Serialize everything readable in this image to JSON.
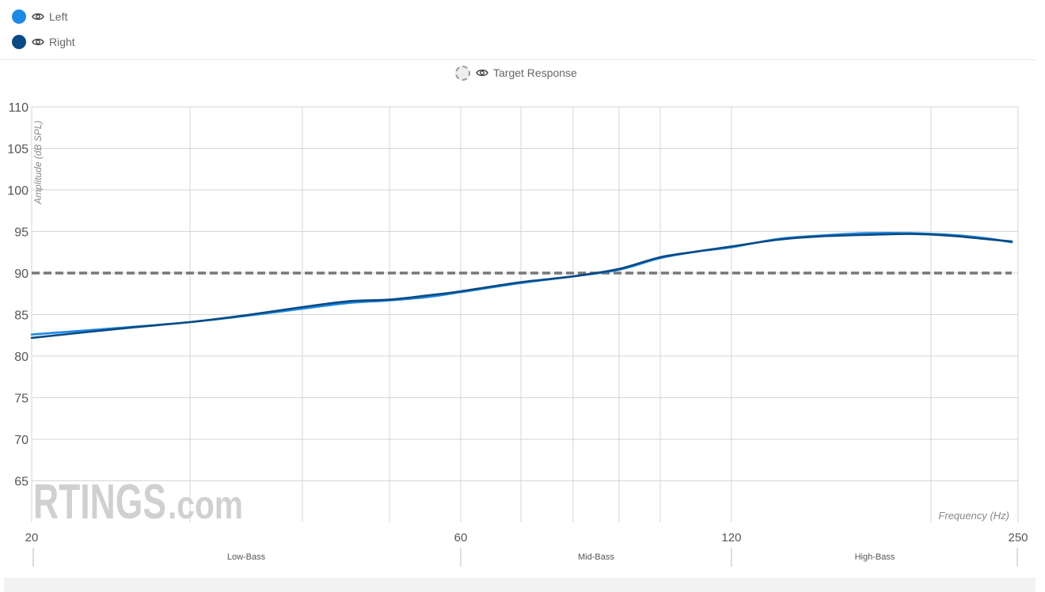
{
  "legend": [
    {
      "label": "Left",
      "color": "#1e88e5",
      "icon": "eye-icon"
    },
    {
      "label": "Right",
      "color": "#0a4a82",
      "icon": "eye-icon"
    }
  ],
  "target_legend": {
    "label": "Target Response",
    "icon": "eye-icon"
  },
  "watermark": {
    "brand": "RTINGS",
    "suffix": ".com"
  },
  "chart_data": {
    "type": "line",
    "x_scale": "log",
    "xlim": [
      20,
      250
    ],
    "ylim": [
      60,
      110
    ],
    "yticks": [
      65,
      70,
      75,
      80,
      85,
      90,
      95,
      100,
      105,
      110
    ],
    "xticks": [
      {
        "value": 20,
        "label": "20"
      },
      {
        "value": 60,
        "label": "60"
      },
      {
        "value": 120,
        "label": "120"
      },
      {
        "value": 250,
        "label": "250"
      }
    ],
    "ylabel": "Amplitude (dB SPL)",
    "xlabel": "Frequency (Hz)",
    "bands": [
      {
        "label": "Low-Bass",
        "from": 20,
        "to": 60
      },
      {
        "label": "Mid-Bass",
        "from": 60,
        "to": 120
      },
      {
        "label": "High-Bass",
        "from": 120,
        "to": 250
      }
    ],
    "grid": true,
    "target": {
      "name": "Target Response",
      "value": 90,
      "color": "#777777"
    },
    "series": [
      {
        "name": "Left",
        "color": "#1e88e5",
        "x": [
          20,
          25,
          30,
          35,
          40,
          45,
          50,
          55,
          60,
          70,
          80,
          90,
          100,
          110,
          120,
          135,
          150,
          170,
          190,
          210,
          230,
          250
        ],
        "y": [
          82.6,
          83.4,
          84.1,
          84.9,
          85.7,
          86.4,
          86.7,
          87.1,
          87.7,
          88.8,
          89.6,
          90.4,
          91.8,
          92.6,
          93.1,
          94.1,
          94.5,
          94.8,
          94.8,
          94.6,
          94.2,
          93.7
        ]
      },
      {
        "name": "Right",
        "color": "#0a4a82",
        "x": [
          20,
          25,
          30,
          35,
          40,
          45,
          50,
          55,
          60,
          70,
          80,
          90,
          100,
          110,
          120,
          135,
          150,
          170,
          190,
          210,
          230,
          250
        ],
        "y": [
          82.2,
          83.3,
          84.1,
          85.0,
          85.9,
          86.6,
          86.8,
          87.3,
          87.8,
          88.9,
          89.6,
          90.5,
          91.9,
          92.6,
          93.2,
          94.0,
          94.4,
          94.6,
          94.7,
          94.5,
          94.1,
          93.8
        ]
      }
    ]
  }
}
